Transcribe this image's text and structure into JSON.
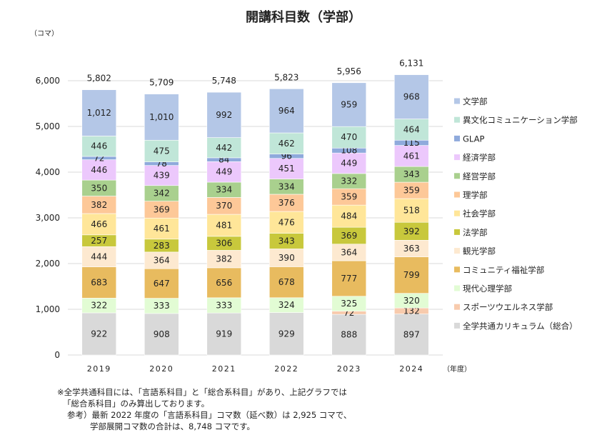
{
  "chart_data": {
    "type": "bar",
    "stacked": true,
    "title": "開講科目数（学部）",
    "ylabel": "（コマ）",
    "xlabel": "（年度）",
    "ylim": [
      0,
      6000
    ],
    "yticks": [
      "0",
      "1,000",
      "2,000",
      "3,000",
      "4,000",
      "5,000",
      "6,000"
    ],
    "grid": true,
    "legend_placement": "right",
    "categories": [
      "2019",
      "2020",
      "2021",
      "2022",
      "2023",
      "2024"
    ],
    "totals": [
      "5,802",
      "5,709",
      "5,748",
      "5,823",
      "5,956",
      "6,131"
    ],
    "series": [
      {
        "name": "全学共通カリキュラム（総合）",
        "color": "#d9d9d9",
        "values": [
          922,
          908,
          919,
          929,
          888,
          897
        ]
      },
      {
        "name": "スポーツウエルネス学部",
        "color": "#f8cbad",
        "values": [
          0,
          0,
          0,
          0,
          72,
          132
        ]
      },
      {
        "name": "現代心理学部",
        "color": "#e2fcd4",
        "values": [
          322,
          333,
          333,
          324,
          325,
          320
        ]
      },
      {
        "name": "コミュニティ福祉学部",
        "color": "#e8bb5f",
        "values": [
          683,
          647,
          656,
          678,
          777,
          799
        ]
      },
      {
        "name": "観光学部",
        "color": "#fde9d0",
        "values": [
          444,
          364,
          382,
          390,
          364,
          363
        ]
      },
      {
        "name": "法学部",
        "color": "#c8c83c",
        "values": [
          257,
          283,
          306,
          343,
          369,
          392
        ]
      },
      {
        "name": "社会学部",
        "color": "#ffe699",
        "values": [
          466,
          461,
          481,
          476,
          484,
          518
        ]
      },
      {
        "name": "理学部",
        "color": "#fdc898",
        "values": [
          382,
          369,
          370,
          376,
          359,
          359
        ]
      },
      {
        "name": "経営学部",
        "color": "#a9d08e",
        "values": [
          350,
          342,
          334,
          334,
          332,
          343
        ]
      },
      {
        "name": "経済学部",
        "color": "#ecc8fc",
        "values": [
          446,
          439,
          449,
          451,
          449,
          461
        ]
      },
      {
        "name": "GLAP",
        "color": "#8faadc",
        "values": [
          72,
          78,
          84,
          96,
          108,
          115
        ]
      },
      {
        "name": "異文化コミュニケーション学部",
        "color": "#c0e6d8",
        "values": [
          446,
          475,
          442,
          462,
          470,
          464
        ]
      },
      {
        "name": "文学部",
        "color": "#b4c7e7",
        "values": [
          1012,
          1010,
          992,
          964,
          959,
          968
        ]
      }
    ]
  },
  "notes": [
    "※全学共通科目には、「言語系科目」と「総合系科目」があり、上記グラフでは",
    "「総合系科目」のみ算出しております。",
    "参考）最新 2022 年度の「言語系科目」コマ数（延べ数）は 2,925 コマで、",
    "学部展開コマ数の合計は、8,748 コマです。"
  ]
}
